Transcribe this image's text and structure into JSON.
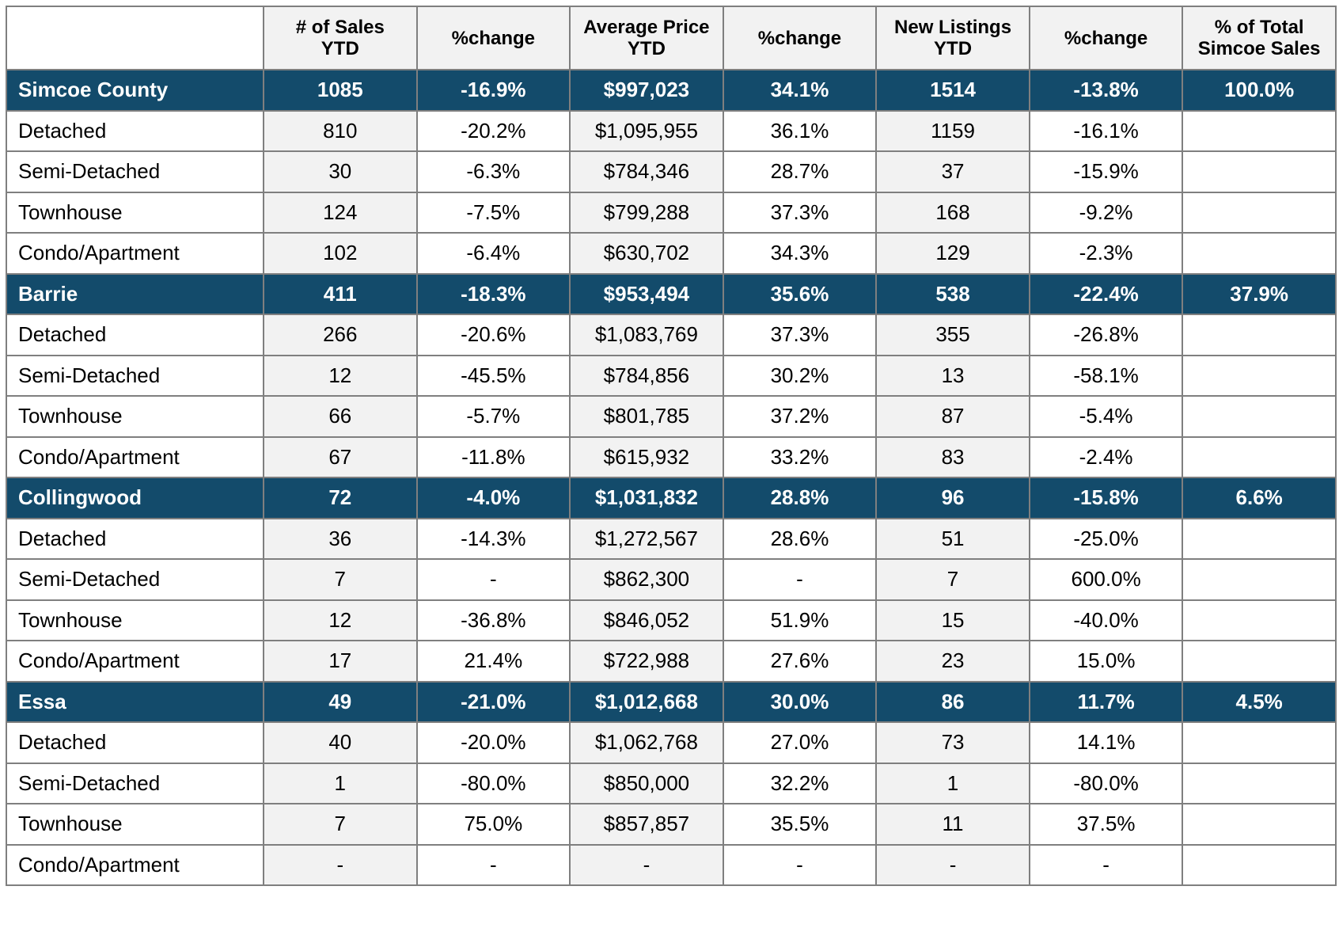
{
  "headers": {
    "corner": "",
    "columns": [
      [
        "# of Sales",
        "YTD"
      ],
      [
        "%change"
      ],
      [
        "Average Price",
        "YTD"
      ],
      [
        "%change"
      ],
      [
        "New Listings",
        "YTD"
      ],
      [
        "%change"
      ],
      [
        "% of Total",
        "Simcoe Sales"
      ]
    ]
  },
  "colors": {
    "area_row_bg": "#134b6b",
    "shaded_cell_bg": "#f2f2f2",
    "border": "#7f7f7f"
  },
  "rows": [
    {
      "type": "area",
      "cells": [
        "Simcoe County",
        "1085",
        "-16.9%",
        "$997,023",
        "34.1%",
        "1514",
        "-13.8%",
        "100.0%"
      ]
    },
    {
      "type": "sub",
      "cells": [
        "Detached",
        "810",
        "-20.2%",
        "$1,095,955",
        "36.1%",
        "1159",
        "-16.1%",
        ""
      ]
    },
    {
      "type": "sub",
      "cells": [
        "Semi-Detached",
        "30",
        "-6.3%",
        "$784,346",
        "28.7%",
        "37",
        "-15.9%",
        ""
      ]
    },
    {
      "type": "sub",
      "cells": [
        "Townhouse",
        "124",
        "-7.5%",
        "$799,288",
        "37.3%",
        "168",
        "-9.2%",
        ""
      ]
    },
    {
      "type": "sub",
      "cells": [
        "Condo/Apartment",
        "102",
        "-6.4%",
        "$630,702",
        "34.3%",
        "129",
        "-2.3%",
        ""
      ]
    },
    {
      "type": "area",
      "cells": [
        "Barrie",
        "411",
        "-18.3%",
        "$953,494",
        "35.6%",
        "538",
        "-22.4%",
        "37.9%"
      ]
    },
    {
      "type": "sub",
      "cells": [
        "Detached",
        "266",
        "-20.6%",
        "$1,083,769",
        "37.3%",
        "355",
        "-26.8%",
        ""
      ]
    },
    {
      "type": "sub",
      "cells": [
        "Semi-Detached",
        "12",
        "-45.5%",
        "$784,856",
        "30.2%",
        "13",
        "-58.1%",
        ""
      ]
    },
    {
      "type": "sub",
      "cells": [
        "Townhouse",
        "66",
        "-5.7%",
        "$801,785",
        "37.2%",
        "87",
        "-5.4%",
        ""
      ]
    },
    {
      "type": "sub",
      "cells": [
        "Condo/Apartment",
        "67",
        "-11.8%",
        "$615,932",
        "33.2%",
        "83",
        "-2.4%",
        ""
      ]
    },
    {
      "type": "area",
      "cells": [
        "Collingwood",
        "72",
        "-4.0%",
        "$1,031,832",
        "28.8%",
        "96",
        "-15.8%",
        "6.6%"
      ]
    },
    {
      "type": "sub",
      "cells": [
        "Detached",
        "36",
        "-14.3%",
        "$1,272,567",
        "28.6%",
        "51",
        "-25.0%",
        ""
      ]
    },
    {
      "type": "sub",
      "cells": [
        "Semi-Detached",
        "7",
        "-",
        "$862,300",
        "-",
        "7",
        "600.0%",
        ""
      ]
    },
    {
      "type": "sub",
      "cells": [
        "Townhouse",
        "12",
        "-36.8%",
        "$846,052",
        "51.9%",
        "15",
        "-40.0%",
        ""
      ]
    },
    {
      "type": "sub",
      "cells": [
        "Condo/Apartment",
        "17",
        "21.4%",
        "$722,988",
        "27.6%",
        "23",
        "15.0%",
        ""
      ]
    },
    {
      "type": "area",
      "cells": [
        "Essa",
        "49",
        "-21.0%",
        "$1,012,668",
        "30.0%",
        "86",
        "11.7%",
        "4.5%"
      ]
    },
    {
      "type": "sub",
      "cells": [
        "Detached",
        "40",
        "-20.0%",
        "$1,062,768",
        "27.0%",
        "73",
        "14.1%",
        ""
      ]
    },
    {
      "type": "sub",
      "cells": [
        "Semi-Detached",
        "1",
        "-80.0%",
        "$850,000",
        "32.2%",
        "1",
        "-80.0%",
        ""
      ]
    },
    {
      "type": "sub",
      "cells": [
        "Townhouse",
        "7",
        "75.0%",
        "$857,857",
        "35.5%",
        "11",
        "37.5%",
        ""
      ]
    },
    {
      "type": "sub",
      "cells": [
        "Condo/Apartment",
        "-",
        "-",
        "-",
        "-",
        "-",
        "-",
        ""
      ]
    }
  ]
}
